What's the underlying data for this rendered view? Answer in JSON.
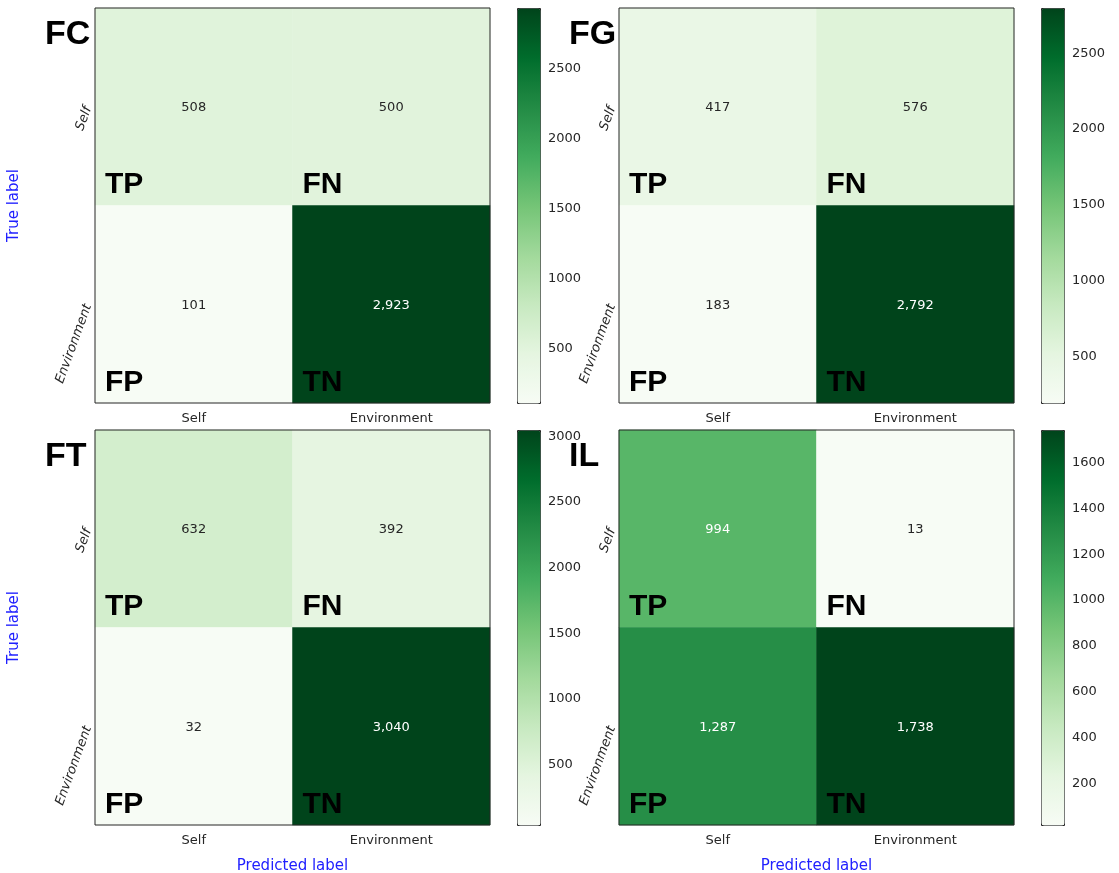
{
  "chart_data": [
    {
      "type": "heatmap",
      "title": "FC",
      "ylabel": "True label",
      "categories": [
        "Self",
        "Environment"
      ],
      "y_categories": [
        "Self",
        "Environment"
      ],
      "cells": [
        [
          508,
          500
        ],
        [
          101,
          2923
        ]
      ],
      "cell_labels": [
        [
          "508",
          "500"
        ],
        [
          "101",
          "2,923"
        ]
      ],
      "clim": [
        101,
        2923
      ],
      "cticks": [
        500,
        1000,
        1500,
        2000,
        2500
      ],
      "annotations": [
        "TP",
        "FN",
        "FP",
        "TN"
      ]
    },
    {
      "type": "heatmap",
      "title": "FG",
      "categories": [
        "Self",
        "Environment"
      ],
      "y_categories": [
        "Self",
        "Environment"
      ],
      "cells": [
        [
          417,
          576
        ],
        [
          183,
          2792
        ]
      ],
      "cell_labels": [
        [
          "417",
          "576"
        ],
        [
          "183",
          "2,792"
        ]
      ],
      "clim": [
        183,
        2792
      ],
      "cticks": [
        500,
        1000,
        1500,
        2000,
        2500
      ],
      "annotations": [
        "TP",
        "FN",
        "FP",
        "TN"
      ]
    },
    {
      "type": "heatmap",
      "title": "FT",
      "xlabel": "Predicted label",
      "ylabel": "True label",
      "categories": [
        "Self",
        "Environment"
      ],
      "y_categories": [
        "Self",
        "Environment"
      ],
      "cells": [
        [
          632,
          392
        ],
        [
          32,
          3040
        ]
      ],
      "cell_labels": [
        [
          "632",
          "392"
        ],
        [
          "32",
          "3,040"
        ]
      ],
      "clim": [
        32,
        3040
      ],
      "cticks": [
        500,
        1000,
        1500,
        2000,
        2500,
        3000
      ],
      "annotations": [
        "TP",
        "FN",
        "FP",
        "TN"
      ]
    },
    {
      "type": "heatmap",
      "title": "IL",
      "xlabel": "Predicted label",
      "categories": [
        "Self",
        "Environment"
      ],
      "y_categories": [
        "Self",
        "Environment"
      ],
      "cells": [
        [
          994,
          13
        ],
        [
          1287,
          1738
        ]
      ],
      "cell_labels": [
        [
          "994",
          "13"
        ],
        [
          "1,287",
          "1,738"
        ]
      ],
      "clim": [
        13,
        1738
      ],
      "cticks": [
        200,
        400,
        600,
        800,
        1000,
        1200,
        1400,
        1600
      ],
      "annotations": [
        "TP",
        "FN",
        "FP",
        "TN"
      ]
    }
  ]
}
